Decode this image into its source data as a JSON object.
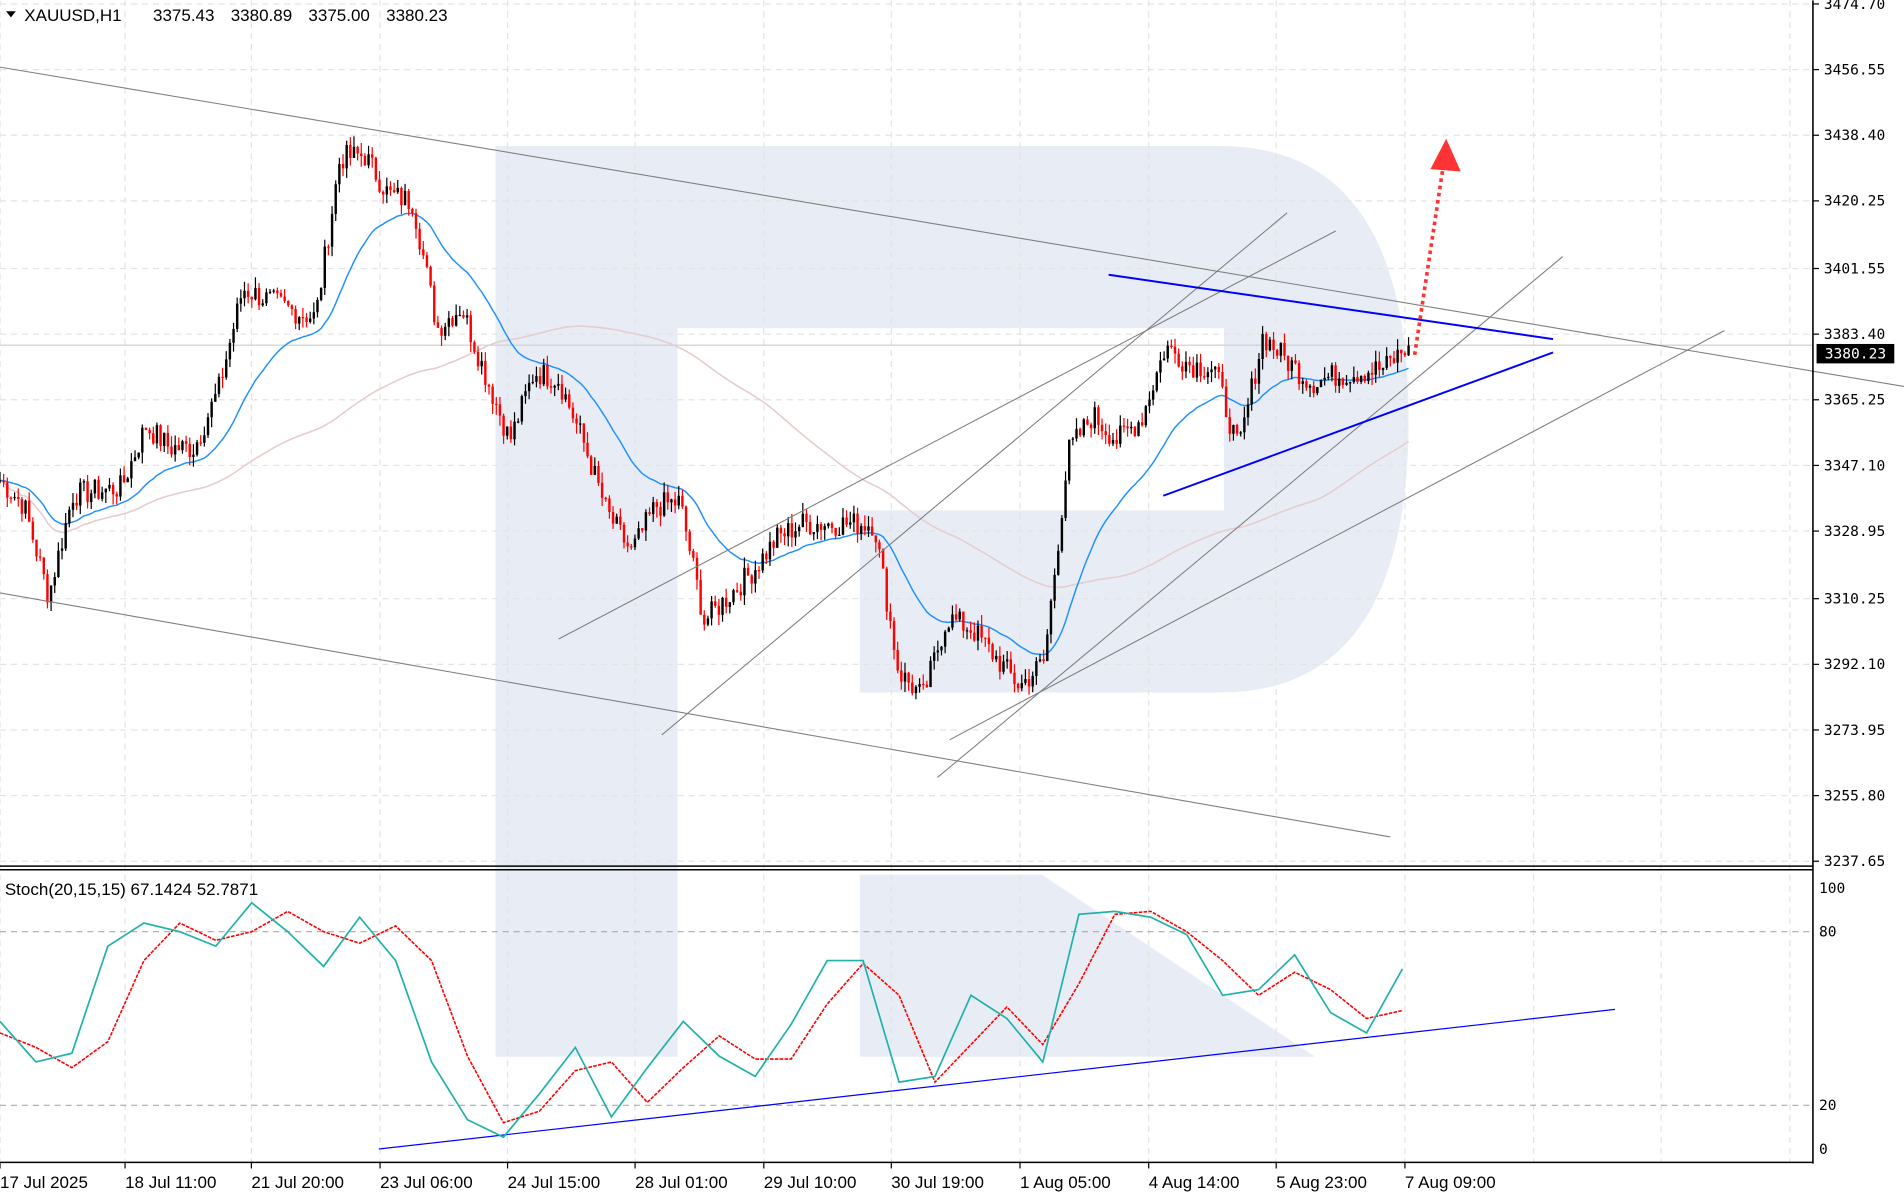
{
  "header": {
    "symbol": "XAUUSD,H1",
    "open": "3375.43",
    "high": "3380.89",
    "low": "3375.00",
    "close": "3380.23"
  },
  "price_axis": {
    "labels": [
      "3474.70",
      "3456.55",
      "3438.40",
      "3420.25",
      "3401.55",
      "3383.40",
      "3365.25",
      "3347.10",
      "3328.95",
      "3310.25",
      "3292.10",
      "3273.95",
      "3255.80",
      "3237.65"
    ],
    "current_price": "3380.23"
  },
  "time_axis": {
    "labels": [
      "17 Jul 2025",
      "18 Jul 11:00",
      "21 Jul 20:00",
      "23 Jul 06:00",
      "24 Jul 15:00",
      "28 Jul 01:00",
      "29 Jul 10:00",
      "30 Jul 19:00",
      "1 Aug 05:00",
      "4 Aug 14:00",
      "5 Aug 23:00",
      "7 Aug 09:00"
    ]
  },
  "indicator": {
    "label": "Stoch(20,15,15) 67.1424 52.7871",
    "levels": [
      "100",
      "80",
      "20",
      "0"
    ]
  },
  "colors": {
    "bull": "#000000",
    "bear": "#ff0000",
    "ma_fast": "#1e90ff",
    "ma_slow": "#e6cccc",
    "stoch_main": "#20b2aa",
    "stoch_signal": "#ff0000",
    "trend_blue": "#0000ff",
    "forecast_arrow": "#ff3333",
    "watermark": "#e8edf5"
  },
  "chart_data": {
    "type": "candlestick",
    "ylim": [
      3237.65,
      3474.7
    ],
    "close_samples": [
      3343,
      3336,
      3311,
      3339,
      3340,
      3341,
      3358,
      3352,
      3352,
      3368,
      3396,
      3393,
      3390,
      3388,
      3432,
      3433,
      3422,
      3420,
      3385,
      3391,
      3372,
      3354,
      3373,
      3371,
      3354,
      3334,
      3323,
      3336,
      3337,
      3304,
      3311,
      3318,
      3327,
      3331,
      3331,
      3331,
      3331,
      3290,
      3283,
      3305,
      3302,
      3294,
      3286,
      3293,
      3351,
      3361,
      3354,
      3360,
      3380,
      3375,
      3374,
      3351,
      3383,
      3376,
      3370,
      3372,
      3373,
      3374,
      3380.23
    ],
    "stoch_main": [
      49,
      35,
      38,
      75,
      83,
      80,
      75,
      90,
      80,
      68,
      85,
      70,
      35,
      15,
      9,
      24,
      40,
      16,
      33,
      49,
      37,
      30,
      48,
      70,
      70,
      28,
      30,
      58,
      50,
      35,
      86,
      87,
      85,
      79,
      58,
      60,
      72,
      52,
      45,
      67.14
    ],
    "stoch_signal": [
      45,
      40,
      33,
      42,
      70,
      83,
      77,
      80,
      87,
      80,
      76,
      82,
      70,
      37,
      14,
      18,
      32,
      35,
      21,
      33,
      44,
      36,
      36,
      55,
      69,
      58,
      28,
      41,
      54,
      41,
      62,
      86,
      87,
      80,
      70,
      58,
      66,
      60,
      50,
      52.79
    ],
    "stoch_ylim": [
      0,
      100
    ],
    "grid": true
  }
}
